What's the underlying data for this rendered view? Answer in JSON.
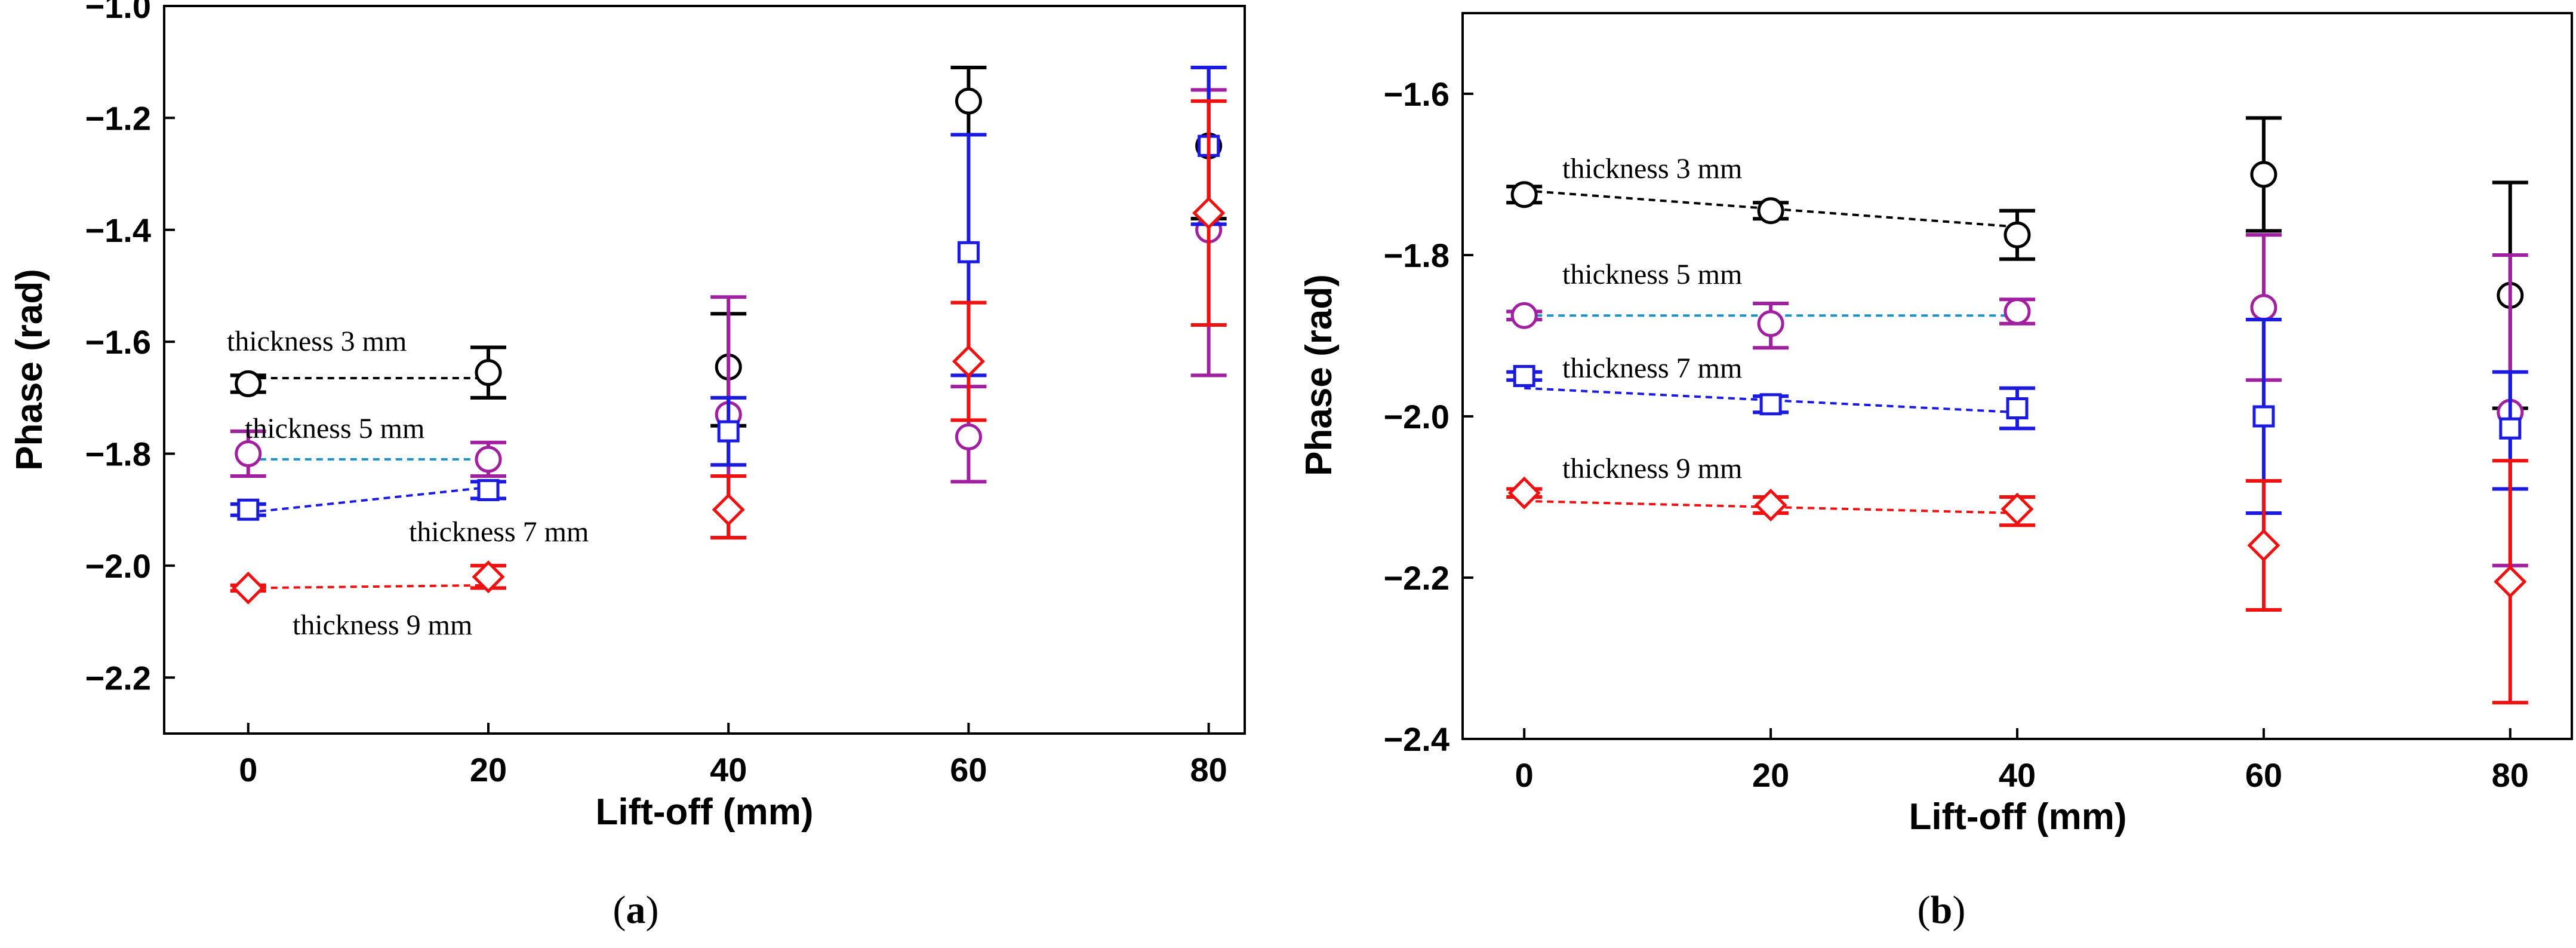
{
  "chart_data": [
    {
      "type": "scatter",
      "panel": "a",
      "caption": {
        "open": "(",
        "letter": "a",
        "close": ")"
      },
      "xlabel": "Lift-off (mm)",
      "ylabel": "Phase (rad)",
      "xlim": [
        -7,
        83
      ],
      "ylim": [
        -2.3,
        -1.0
      ],
      "xticks": [
        0,
        20,
        40,
        60,
        80
      ],
      "xtick_labels": [
        "0",
        "20",
        "40",
        "60",
        "80"
      ],
      "yticks": [
        -2.2,
        -2.0,
        -1.8,
        -1.6,
        -1.4,
        -1.2,
        -1.0
      ],
      "ytick_labels": [
        "−2.2",
        "−2.0",
        "−1.8",
        "−1.6",
        "−1.4",
        "−1.2",
        "−1.0"
      ],
      "series": [
        {
          "name": "thickness 3 mm",
          "color": "#000000",
          "marker": "circle",
          "fit_color": "#000000",
          "x": [
            0,
            20,
            40,
            60,
            80
          ],
          "y": [
            -1.675,
            -1.655,
            -1.645,
            -1.17,
            -1.25
          ],
          "err_low": [
            -1.69,
            -1.7,
            -1.75,
            -1.23,
            -1.38
          ],
          "err_high": [
            -1.66,
            -1.61,
            -1.55,
            -1.11,
            -1.11
          ],
          "fit": [
            [
              0,
              -1.665
            ],
            [
              20,
              -1.665
            ]
          ]
        },
        {
          "name": "thickness 5 mm",
          "color": "#a020a0",
          "marker": "circle",
          "fit_color": "#1e90c8",
          "x": [
            0,
            20,
            40,
            60,
            80
          ],
          "y": [
            -1.8,
            -1.81,
            -1.73,
            -1.77,
            -1.4
          ],
          "err_low": [
            -1.84,
            -1.84,
            -1.95,
            -1.85,
            -1.66
          ],
          "err_high": [
            -1.76,
            -1.78,
            -1.52,
            -1.68,
            -1.15
          ],
          "fit": [
            [
              0,
              -1.81
            ],
            [
              20,
              -1.81
            ]
          ]
        },
        {
          "name": "thickness 7 mm",
          "color": "#1a1ae0",
          "marker": "square",
          "fit_color": "#1a1ae0",
          "x": [
            0,
            20,
            40,
            60,
            80
          ],
          "y": [
            -1.9,
            -1.865,
            -1.76,
            -1.44,
            -1.25
          ],
          "err_low": [
            -1.91,
            -1.88,
            -1.82,
            -1.66,
            -1.39
          ],
          "err_high": [
            -1.89,
            -1.85,
            -1.7,
            -1.23,
            -1.11
          ],
          "fit": [
            [
              0,
              -1.905
            ],
            [
              20,
              -1.86
            ]
          ]
        },
        {
          "name": "thickness 9 mm",
          "color": "#ee1111",
          "marker": "diamond",
          "fit_color": "#ee1111",
          "x": [
            0,
            20,
            40,
            60,
            80
          ],
          "y": [
            -2.04,
            -2.02,
            -1.9,
            -1.635,
            -1.37
          ],
          "err_low": [
            -2.045,
            -2.04,
            -1.95,
            -1.74,
            -1.57
          ],
          "err_high": [
            -2.035,
            -2.0,
            -1.84,
            -1.53,
            -1.17
          ],
          "fit": [
            [
              0,
              -2.04
            ],
            [
              20,
              -2.035
            ]
          ]
        }
      ],
      "series_labels": [
        "thickness 3 mm",
        "thickness 5 mm",
        "thickness 7 mm",
        "thickness 9 mm"
      ]
    },
    {
      "type": "scatter",
      "panel": "b",
      "caption": {
        "open": "(",
        "letter": "b",
        "close": ")"
      },
      "xlabel": "Lift-off (mm)",
      "ylabel": "Phase (rad)",
      "xlim": [
        -5,
        85
      ],
      "ylim": [
        -2.4,
        -1.5
      ],
      "xticks": [
        0,
        20,
        40,
        60,
        80
      ],
      "xtick_labels": [
        "0",
        "20",
        "40",
        "60",
        "80"
      ],
      "yticks": [
        -2.4,
        -2.2,
        -2.0,
        -1.8,
        -1.6
      ],
      "ytick_labels": [
        "−2.4",
        "−2.2",
        "−2.0",
        "−1.8",
        "−1.6"
      ],
      "series": [
        {
          "name": "thickness 3 mm",
          "color": "#000000",
          "marker": "circle",
          "fit_color": "#000000",
          "x": [
            0,
            20,
            40,
            60,
            80
          ],
          "y": [
            -1.725,
            -1.745,
            -1.775,
            -1.7,
            -1.85
          ],
          "err_low": [
            -1.735,
            -1.755,
            -1.805,
            -1.77,
            -1.99
          ],
          "err_high": [
            -1.715,
            -1.735,
            -1.745,
            -1.63,
            -1.71
          ],
          "fit": [
            [
              0,
              -1.72
            ],
            [
              40,
              -1.765
            ]
          ]
        },
        {
          "name": "thickness 5 mm",
          "color": "#a020a0",
          "marker": "circle",
          "fit_color": "#1e90c8",
          "x": [
            0,
            20,
            40,
            60,
            80
          ],
          "y": [
            -1.875,
            -1.885,
            -1.87,
            -1.865,
            -1.995
          ],
          "err_low": [
            -1.88,
            -1.915,
            -1.885,
            -1.955,
            -2.185
          ],
          "err_high": [
            -1.87,
            -1.86,
            -1.855,
            -1.775,
            -1.8
          ],
          "fit": [
            [
              0,
              -1.875
            ],
            [
              40,
              -1.875
            ]
          ]
        },
        {
          "name": "thickness 7 mm",
          "color": "#1a1ae0",
          "marker": "square",
          "fit_color": "#1a1ae0",
          "x": [
            0,
            20,
            40,
            60,
            80
          ],
          "y": [
            -1.95,
            -1.985,
            -1.99,
            -2.0,
            -2.015
          ],
          "err_low": [
            -1.955,
            -1.995,
            -2.015,
            -2.12,
            -2.09
          ],
          "err_high": [
            -1.945,
            -1.975,
            -1.965,
            -1.88,
            -1.945
          ],
          "fit": [
            [
              0,
              -1.965
            ],
            [
              40,
              -1.995
            ]
          ]
        },
        {
          "name": "thickness 9 mm",
          "color": "#ee1111",
          "marker": "diamond",
          "fit_color": "#ee1111",
          "x": [
            0,
            20,
            40,
            60,
            80
          ],
          "y": [
            -2.095,
            -2.11,
            -2.115,
            -2.16,
            -2.205
          ],
          "err_low": [
            -2.1,
            -2.12,
            -2.135,
            -2.24,
            -2.355
          ],
          "err_high": [
            -2.09,
            -2.1,
            -2.1,
            -2.08,
            -2.055
          ],
          "fit": [
            [
              0,
              -2.105
            ],
            [
              40,
              -2.12
            ]
          ]
        }
      ],
      "series_labels": [
        "thickness 3 mm",
        "thickness 5 mm",
        "thickness 7 mm",
        "thickness 9 mm"
      ]
    }
  ]
}
